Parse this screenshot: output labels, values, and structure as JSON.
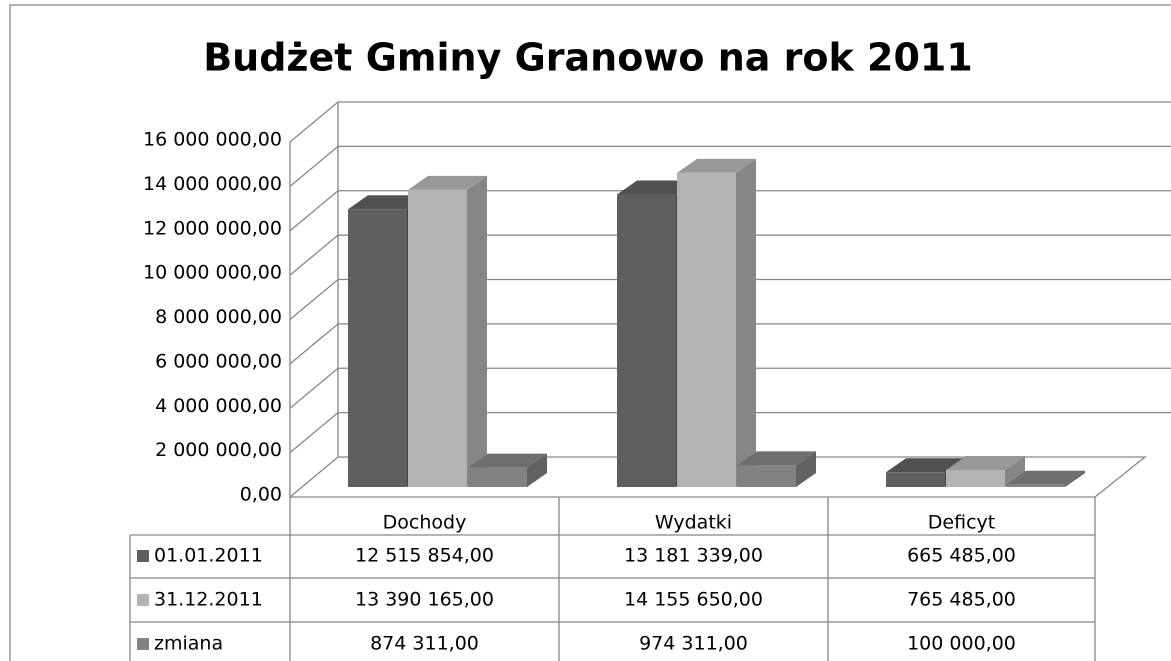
{
  "chart_data": {
    "type": "bar3d",
    "title": "Budżet Gminy Granowo na rok 2011",
    "categories": [
      "Dochody",
      "Wydatki",
      "Deficyt"
    ],
    "series": [
      {
        "name": "01.01.2011",
        "color": "#5f5f5f",
        "values": [
          12515854,
          13181339,
          665485
        ],
        "value_labels": [
          "12 515 854,00",
          "13 181 339,00",
          "665 485,00"
        ]
      },
      {
        "name": "31.12.2011",
        "color": "#b3b3b3",
        "values": [
          13390165,
          14155650,
          765485
        ],
        "value_labels": [
          "13 390 165,00",
          "14 155 650,00",
          "765 485,00"
        ]
      },
      {
        "name": "zmiana",
        "color": "#828282",
        "values": [
          874311,
          974311,
          100000
        ],
        "value_labels": [
          "874 311,00",
          "974 311,00",
          "100 000,00"
        ]
      }
    ],
    "ylim": [
      0,
      16000000
    ],
    "yticks": [
      {
        "value": 0,
        "label": "0,00"
      },
      {
        "value": 2000000,
        "label": "2 000 000,00"
      },
      {
        "value": 4000000,
        "label": "4 000 000,00"
      },
      {
        "value": 6000000,
        "label": "6 000 000,00"
      },
      {
        "value": 8000000,
        "label": "8 000 000,00"
      },
      {
        "value": 10000000,
        "label": "10 000 000,00"
      },
      {
        "value": 12000000,
        "label": "12 000 000,00"
      },
      {
        "value": 14000000,
        "label": "14 000 000,00"
      },
      {
        "value": 16000000,
        "label": "16 000 000,00"
      }
    ],
    "grid": true
  }
}
